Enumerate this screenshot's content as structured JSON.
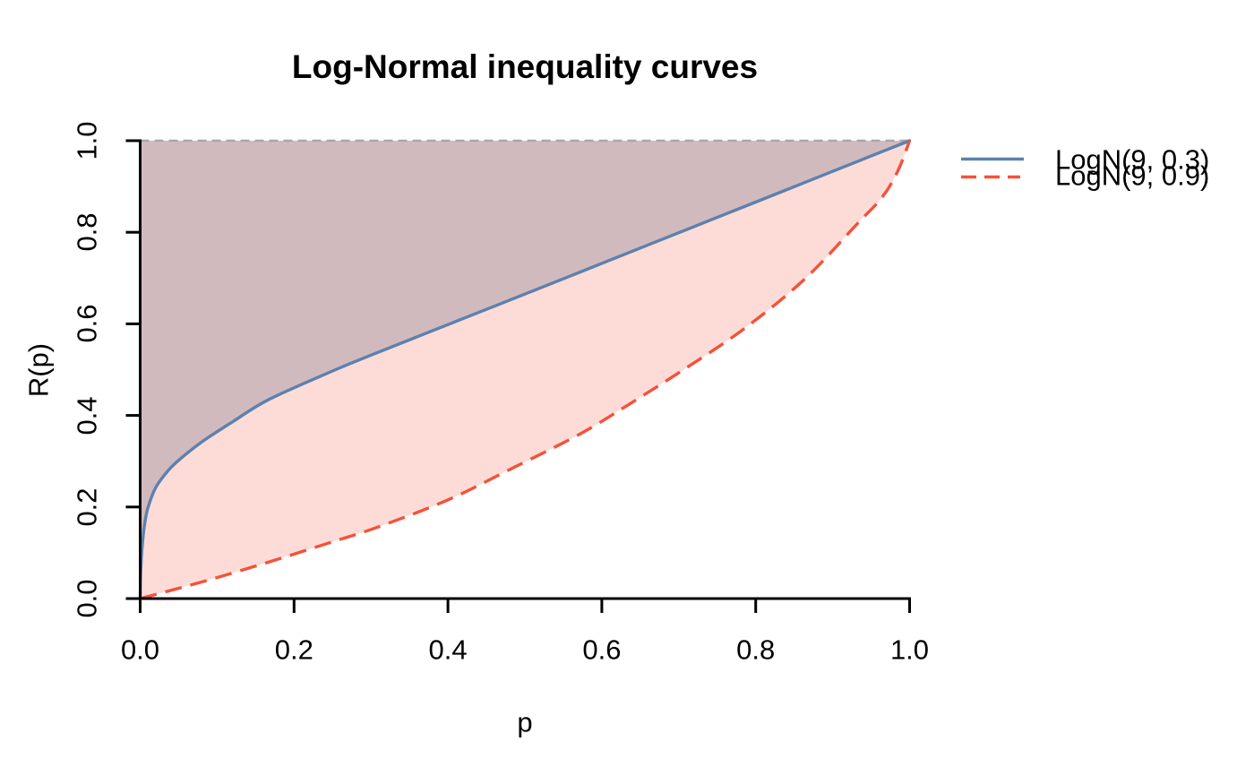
{
  "title": "Log-Normal inequality curves",
  "x_axis": {
    "label": "p",
    "tick_labels": [
      "0.0",
      "0.2",
      "0.4",
      "0.6",
      "0.8",
      "1.0"
    ]
  },
  "y_axis": {
    "label": "R(p)",
    "tick_labels": [
      "0.0",
      "0.2",
      "0.4",
      "0.6",
      "0.8",
      "1.0"
    ]
  },
  "legend": {
    "position": "right",
    "items": [
      {
        "label": "LogN(9, 0.3)",
        "style": "solid",
        "color": "#5d81ae"
      },
      {
        "label": "LogN(9, 0.9)",
        "style": "dashed",
        "color": "#f4523a"
      }
    ]
  },
  "chart_data": {
    "type": "line",
    "title": "Log-Normal inequality curves",
    "xlabel": "p",
    "ylabel": "R(p)",
    "xlim": [
      0,
      1
    ],
    "ylim": [
      0,
      1
    ],
    "grid": false,
    "legend_position": "right",
    "x_ticks": [
      0.0,
      0.2,
      0.4,
      0.6,
      0.8,
      1.0
    ],
    "y_ticks": [
      0.0,
      0.2,
      0.4,
      0.6,
      0.8,
      1.0
    ],
    "reference_line": {
      "y": 1.0,
      "style": "dashed",
      "color": "#a8a8a8"
    },
    "series": [
      {
        "name": "LogN(9, 0.3)",
        "color": "#5d81ae",
        "line_style": "solid",
        "fill": "rgba(98,100,126,0.28)",
        "fill_region": "between curve and y = 1",
        "points": [
          [
            0,
            0
          ],
          [
            0.0005,
            0.045
          ],
          [
            0.001,
            0.07
          ],
          [
            0.002,
            0.1
          ],
          [
            0.004,
            0.138
          ],
          [
            0.006,
            0.165
          ],
          [
            0.01,
            0.198
          ],
          [
            0.02,
            0.242
          ],
          [
            0.035,
            0.277
          ],
          [
            0.05,
            0.302
          ],
          [
            0.08,
            0.342
          ],
          [
            0.12,
            0.386
          ],
          [
            0.1675,
            0.435
          ],
          [
            0.25,
            0.497
          ],
          [
            0.3066,
            0.536
          ],
          [
            0.3994,
            0.598
          ],
          [
            0.5,
            0.665
          ],
          [
            0.6,
            0.732
          ],
          [
            0.7,
            0.799
          ],
          [
            0.8,
            0.866
          ],
          [
            0.9,
            0.933
          ],
          [
            0.95,
            0.9665
          ],
          [
            1,
            1
          ]
        ]
      },
      {
        "name": "LogN(9, 0.9)",
        "color": "#f4523a",
        "line_style": "dashed",
        "fill": "rgba(247,90,64,0.21)",
        "fill_region": "between curve and y = 1",
        "points": [
          [
            0,
            0
          ],
          [
            0.04,
            0.018
          ],
          [
            0.09,
            0.041
          ],
          [
            0.1675,
            0.08
          ],
          [
            0.25,
            0.124
          ],
          [
            0.307,
            0.155
          ],
          [
            0.3994,
            0.215
          ],
          [
            0.484,
            0.285
          ],
          [
            0.57,
            0.358
          ],
          [
            0.6313,
            0.42
          ],
          [
            0.709,
            0.503
          ],
          [
            0.7855,
            0.59
          ],
          [
            0.8632,
            0.697
          ],
          [
            0.93,
            0.815
          ],
          [
            0.965,
            0.878
          ],
          [
            0.985,
            0.935
          ],
          [
            1,
            1
          ]
        ]
      }
    ]
  }
}
